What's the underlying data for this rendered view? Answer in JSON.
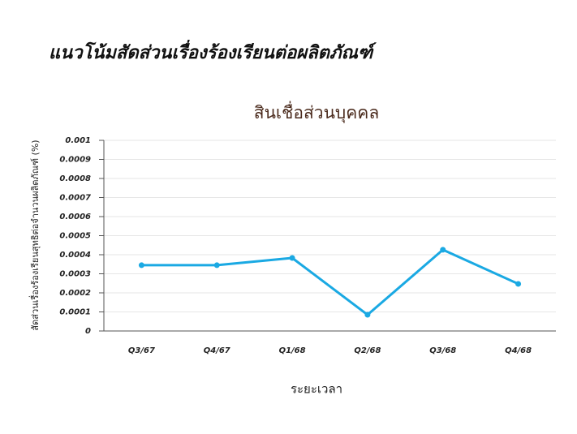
{
  "header": {
    "title": "แนวโน้มสัดส่วนเรื่องร้องเรียนต่อผลิตภัณฑ์"
  },
  "chart_data": {
    "type": "line",
    "title": "สินเชื่อส่วนบุคคล",
    "x_label": "ระยะเวลา",
    "y_label": "สัดส่วนเรื่องร้องเรียนสุทธิต่อจำนวนผลิตภัณฑ์ (%)",
    "categories": [
      "Q3/67",
      "Q4/67",
      "Q1/68",
      "Q2/68",
      "Q3/68",
      "Q4/68"
    ],
    "values": [
      0.000345,
      0.000345,
      0.000383,
      8.5e-05,
      0.000426,
      0.000247
    ],
    "color": "#1aa9e3",
    "ylim": [
      0,
      0.001
    ],
    "yticks": [
      0,
      0.0001,
      0.0002,
      0.0003,
      0.0004,
      0.0005,
      0.0006,
      0.0007,
      0.0008,
      0.0009,
      0.001
    ],
    "grid": true
  }
}
